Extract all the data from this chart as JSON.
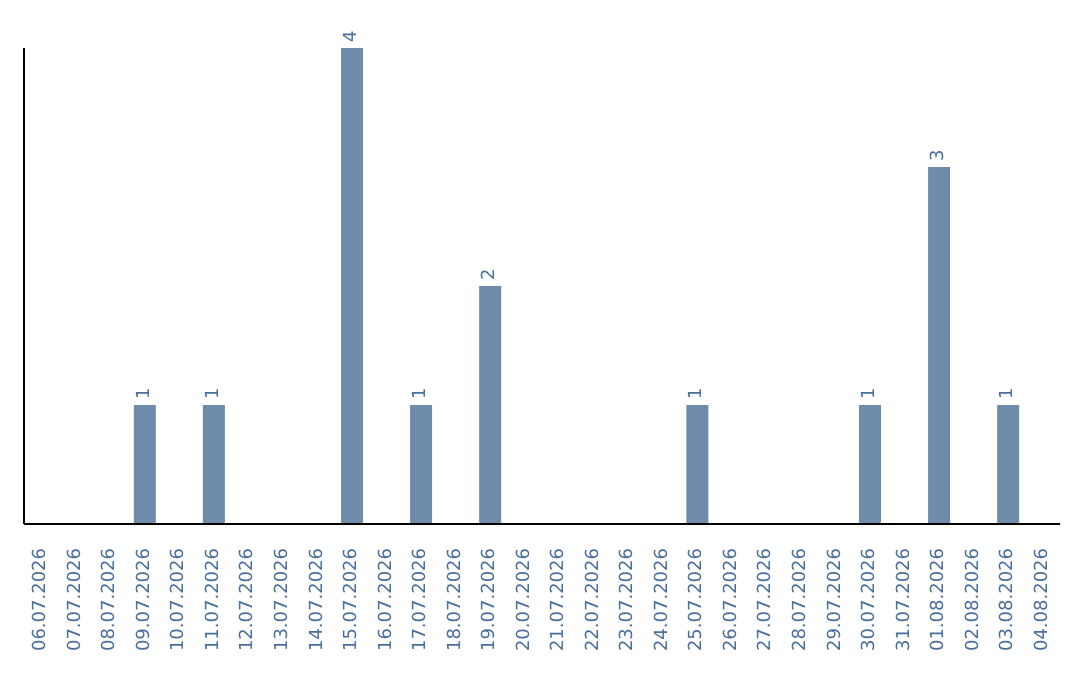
{
  "chart_data": {
    "type": "bar",
    "categories": [
      "06.07.2026",
      "07.07.2026",
      "08.07.2026",
      "09.07.2026",
      "10.07.2026",
      "11.07.2026",
      "12.07.2026",
      "13.07.2026",
      "14.07.2026",
      "15.07.2026",
      "16.07.2026",
      "17.07.2026",
      "18.07.2026",
      "19.07.2026",
      "20.07.2026",
      "21.07.2026",
      "22.07.2026",
      "23.07.2026",
      "24.07.2026",
      "25.07.2026",
      "26.07.2026",
      "27.07.2026",
      "28.07.2026",
      "29.07.2026",
      "30.07.2026",
      "31.07.2026",
      "01.08.2026",
      "02.08.2026",
      "03.08.2026",
      "04.08.2026"
    ],
    "values": [
      0,
      0,
      0,
      1,
      0,
      1,
      0,
      0,
      0,
      4,
      0,
      1,
      0,
      2,
      0,
      0,
      0,
      0,
      0,
      1,
      0,
      0,
      0,
      0,
      1,
      0,
      3,
      0,
      1,
      0
    ],
    "value_labels": [
      null,
      null,
      null,
      "1",
      null,
      "1",
      null,
      null,
      null,
      "4",
      null,
      "1",
      null,
      "2",
      null,
      null,
      null,
      null,
      null,
      "1",
      null,
      null,
      null,
      null,
      "1",
      null,
      "3",
      null,
      "1",
      null
    ],
    "color": "#6e8caa",
    "tick_labels": "x"
  }
}
